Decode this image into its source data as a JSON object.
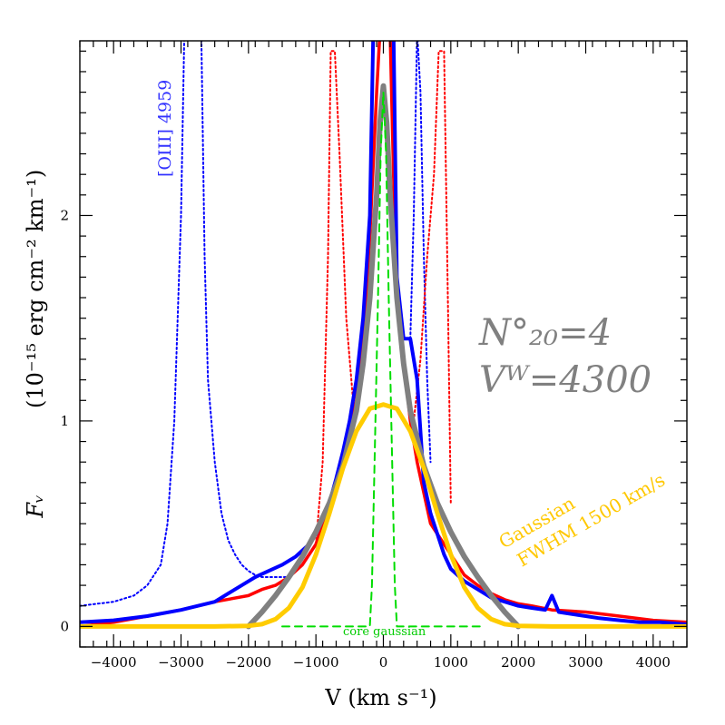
{
  "chart_data": {
    "type": "line",
    "xlabel": "V (km s⁻¹)",
    "ylabel": "(10⁻¹⁵ erg cm⁻² km⁻¹)",
    "ylabel_symbol": "Fᵥ",
    "xlim": [
      -4500,
      4500
    ],
    "ylim": [
      -0.1,
      2.85
    ],
    "x_ticks": [
      -4000,
      -3000,
      -2000,
      -1000,
      0,
      1000,
      2000,
      3000,
      4000
    ],
    "x_tick_labels": [
      "−4000",
      "−3000",
      "−2000",
      "−1000",
      "0",
      "1000",
      "2000",
      "3000",
      "4000"
    ],
    "y_ticks": [
      0,
      1,
      2
    ],
    "y_tick_labels": [
      "0",
      "1",
      "2"
    ],
    "annotations": {
      "oiii_label": "[OIII] 4959",
      "core_label": "core gaussian",
      "gaussian_label_1": "Gaussian",
      "gaussian_label_2": "FWHM 1500 km/s",
      "param_n": "N°₂₀=4",
      "param_v": "Vᵂ=4300"
    },
    "series": [
      {
        "name": "blue observed profile",
        "color": "#0000ff",
        "x": [
          -4500,
          -4000,
          -3500,
          -3000,
          -2500,
          -2300,
          -2100,
          -1900,
          -1700,
          -1500,
          -1300,
          -1100,
          -1000,
          -900,
          -800,
          -700,
          -600,
          -500,
          -400,
          -300,
          -200,
          -150,
          -100,
          -50,
          0,
          50,
          100,
          150,
          200,
          300,
          400,
          500,
          600,
          700,
          800,
          900,
          1000,
          1200,
          1400,
          1600,
          1800,
          2000,
          2200,
          2400,
          2500,
          2600,
          2800,
          3000,
          3200,
          3500,
          3800,
          4100,
          4500
        ],
        "y": [
          0.02,
          0.03,
          0.05,
          0.08,
          0.12,
          0.16,
          0.2,
          0.24,
          0.27,
          0.3,
          0.34,
          0.4,
          0.45,
          0.52,
          0.6,
          0.72,
          0.85,
          1.0,
          1.2,
          1.5,
          2.0,
          2.9,
          2.9,
          2.9,
          2.9,
          2.9,
          2.9,
          2.9,
          1.7,
          1.4,
          1.4,
          1.2,
          0.7,
          0.55,
          0.45,
          0.35,
          0.28,
          0.22,
          0.18,
          0.14,
          0.12,
          0.1,
          0.09,
          0.08,
          0.15,
          0.07,
          0.06,
          0.05,
          0.04,
          0.03,
          0.02,
          0.02,
          0.01
        ]
      },
      {
        "name": "red observed profile",
        "color": "#ff0000",
        "x": [
          -4500,
          -4000,
          -3500,
          -3000,
          -2500,
          -2000,
          -1800,
          -1600,
          -1400,
          -1200,
          -1000,
          -900,
          -800,
          -700,
          -600,
          -500,
          -400,
          -300,
          -200,
          -100,
          -50,
          0,
          50,
          100,
          150,
          200,
          300,
          400,
          500,
          600,
          700,
          800,
          1000,
          1200,
          1400,
          1600,
          1800,
          2000,
          2200,
          2500,
          3000,
          3500,
          4000,
          4500
        ],
        "y": [
          0.0,
          0.02,
          0.05,
          0.08,
          0.12,
          0.15,
          0.18,
          0.2,
          0.24,
          0.3,
          0.4,
          0.5,
          0.6,
          0.7,
          0.82,
          0.95,
          1.1,
          1.4,
          1.9,
          2.6,
          2.9,
          2.9,
          2.9,
          2.9,
          2.2,
          1.7,
          1.3,
          1.0,
          0.8,
          0.65,
          0.5,
          0.45,
          0.35,
          0.25,
          0.2,
          0.16,
          0.13,
          0.11,
          0.1,
          0.08,
          0.07,
          0.05,
          0.03,
          0.02
        ]
      },
      {
        "name": "gray model profile",
        "color": "#808080",
        "x": [
          -2000,
          -1800,
          -1600,
          -1400,
          -1200,
          -1000,
          -800,
          -600,
          -400,
          -300,
          -200,
          -100,
          -50,
          0,
          50,
          100,
          200,
          300,
          400,
          600,
          800,
          1000,
          1200,
          1400,
          1600,
          1800,
          2000
        ],
        "y": [
          0.0,
          0.07,
          0.15,
          0.24,
          0.34,
          0.46,
          0.6,
          0.78,
          1.05,
          1.28,
          1.6,
          2.1,
          2.45,
          2.63,
          2.45,
          2.1,
          1.6,
          1.28,
          1.05,
          0.78,
          0.6,
          0.46,
          0.34,
          0.24,
          0.15,
          0.07,
          0.0
        ]
      },
      {
        "name": "Gaussian FWHM 1500 km/s",
        "color": "#ffcc00",
        "x": [
          -4500,
          -2500,
          -2000,
          -1800,
          -1600,
          -1400,
          -1200,
          -1000,
          -800,
          -600,
          -400,
          -200,
          0,
          200,
          400,
          600,
          800,
          1000,
          1200,
          1400,
          1600,
          1800,
          2000,
          2500,
          4500
        ],
        "y": [
          0.0,
          0.0,
          0.003,
          0.011,
          0.035,
          0.09,
          0.19,
          0.35,
          0.55,
          0.77,
          0.95,
          1.06,
          1.08,
          1.06,
          0.95,
          0.77,
          0.55,
          0.35,
          0.19,
          0.09,
          0.035,
          0.011,
          0.003,
          0.0,
          0.0
        ]
      },
      {
        "name": "core gaussian",
        "color": "#00dd00",
        "x": [
          -1500,
          -200,
          -170,
          -130,
          -80,
          -40,
          0,
          40,
          80,
          130,
          170,
          200,
          1500
        ],
        "y": [
          0.0,
          0.0,
          0.2,
          0.8,
          1.6,
          2.3,
          2.6,
          2.3,
          1.6,
          0.8,
          0.2,
          0.0,
          0.0
        ]
      },
      {
        "name": "blue dotted [OIII] 4959",
        "color": "#0000ff",
        "x": [
          -4500,
          -4000,
          -3700,
          -3500,
          -3300,
          -3200,
          -3100,
          -3000,
          -2950,
          -2900,
          -2800,
          -2700,
          -2650,
          -2600,
          -2500,
          -2400,
          -2300,
          -2200,
          -2100,
          -2000,
          -1900,
          -1800,
          -1600,
          -1400
        ],
        "y": [
          0.1,
          0.12,
          0.15,
          0.2,
          0.3,
          0.5,
          1.0,
          2.0,
          2.9,
          2.9,
          2.9,
          2.9,
          1.8,
          1.2,
          0.8,
          0.55,
          0.42,
          0.35,
          0.3,
          0.27,
          0.25,
          0.24,
          0.24,
          0.24
        ]
      },
      {
        "name": "blue dotted right",
        "color": "#0000ff",
        "x": [
          400,
          450,
          500,
          550,
          600,
          650,
          700
        ],
        "y": [
          1.4,
          2.0,
          2.9,
          2.6,
          1.8,
          1.2,
          0.8
        ]
      },
      {
        "name": "red dotted left",
        "color": "#ff0000",
        "x": [
          -1000,
          -900,
          -820,
          -780,
          -760,
          -720,
          -650,
          -550,
          -450
        ],
        "y": [
          0.4,
          0.8,
          1.8,
          2.8,
          2.8,
          2.8,
          2.3,
          1.5,
          1.1
        ]
      },
      {
        "name": "red dotted right",
        "color": "#ff0000",
        "x": [
          450,
          550,
          650,
          750,
          820,
          860,
          900,
          960,
          1000
        ],
        "y": [
          1.0,
          1.3,
          1.8,
          2.2,
          2.8,
          2.8,
          2.8,
          1.5,
          0.6
        ]
      }
    ]
  }
}
